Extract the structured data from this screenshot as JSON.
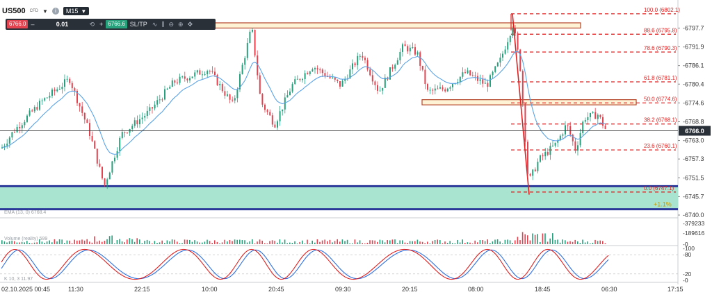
{
  "toolbar": {
    "symbol": "US500",
    "symbol_sub": "CFD",
    "timeframe": "M15",
    "sell_price": "6766.0",
    "buy_price": "6766.6",
    "quantity": "0.01",
    "minus": "–",
    "plus": "+",
    "sltp": "SL/TP",
    "icons": [
      "chevron-down-icon",
      "info-icon",
      "refresh-icon",
      "line-chart-icon",
      "indicators-icon",
      "zoom-out-icon",
      "zoom-in-icon",
      "crosshair-icon"
    ]
  },
  "colors": {
    "bull": "#26a17b",
    "bear": "#e2434f",
    "ema": "#5aa2e6",
    "price_line": "#3a3a3a",
    "support_zone": "#a8e4cf",
    "support_border": "#2b3899",
    "fib": "#e02020",
    "box_fill": "#fff3d6",
    "box_border": "#b5462b",
    "stoch_k": "#e02020",
    "stoch_d": "#2f6fe0"
  },
  "chart_data": [
    {
      "type": "candlestick",
      "panel": "price",
      "y_ticks": [
        6797.7,
        6791.9,
        6786.1,
        6780.4,
        6774.6,
        6768.8,
        6763.0,
        6757.3,
        6751.5,
        6745.7,
        6740.0
      ],
      "ylim": [
        6740.0,
        6802.5
      ],
      "current_price": "6766.0",
      "ema_label": "EMA (13, 0) 6768.4",
      "fib_levels": [
        {
          "label": "100.0 (6802.1)",
          "value": 6802.1
        },
        {
          "label": "88.6 (6795.8)",
          "value": 6795.8
        },
        {
          "label": "78.6 (6790.3)",
          "value": 6790.3
        },
        {
          "label": "61.8 (6781.1)",
          "value": 6781.1
        },
        {
          "label": "50.0 (6774.6)",
          "value": 6774.6
        },
        {
          "label": "38.2 (6768.1)",
          "value": 6768.1
        },
        {
          "label": "23.6 (6760.1)",
          "value": 6760.1
        },
        {
          "label": "0.0 (6747.1)",
          "value": 6747.1
        }
      ],
      "zones": [
        {
          "name": "resistance-box",
          "low": 6797.7,
          "high": 6799.3
        },
        {
          "name": "mid-box",
          "low": 6774.0,
          "high": 6775.6
        },
        {
          "name": "support-zone",
          "low": 6741.8,
          "high": 6748.9
        }
      ],
      "zone_note": "+1.1%",
      "overlays": [
        "EMA 13",
        "Fibonacci retracement",
        "horizontal zones"
      ]
    },
    {
      "type": "bar",
      "panel": "volume",
      "label": "Volume (reality) 599",
      "y_ticks": [
        "379233",
        "189616",
        "0"
      ],
      "ylim": [
        0,
        379233
      ]
    },
    {
      "type": "line",
      "panel": "stochastic",
      "label": "K 10, 3 11.97",
      "y_ticks": [
        "100",
        "80",
        "20",
        "0"
      ],
      "ylim": [
        0,
        100
      ],
      "series": [
        {
          "color": "red"
        },
        {
          "color": "blue"
        }
      ]
    }
  ],
  "x_labels": [
    "02.10.2025 00:45",
    "11:30",
    "22:15",
    "10:00",
    "20:45",
    "09:30",
    "20:15",
    "08:00",
    "18:45",
    "06:30",
    "17:15"
  ]
}
